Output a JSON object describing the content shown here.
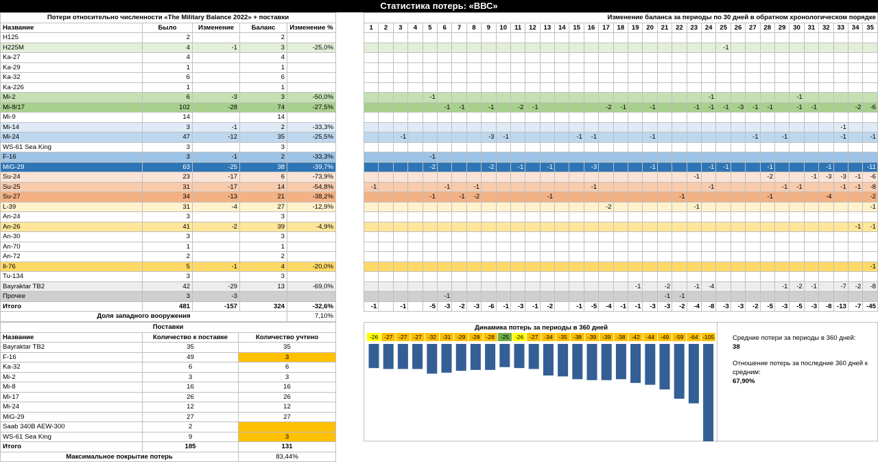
{
  "title": "Статистика потерь: «ВВС»",
  "losses": {
    "header": "Потери относительно численности «The Military Balance 2022» + поставки",
    "columns": [
      "Название",
      "Было",
      "Изменение",
      "Баланс",
      "Изменение %"
    ],
    "rows": [
      {
        "name": "H125",
        "was": "2",
        "change": "",
        "balance": "2",
        "pct": "",
        "color": "#ffffff"
      },
      {
        "name": "H225M",
        "was": "4",
        "change": "-1",
        "balance": "3",
        "pct": "-25,0%",
        "color": "#e2efd9"
      },
      {
        "name": "Ka-27",
        "was": "4",
        "change": "",
        "balance": "4",
        "pct": "",
        "color": "#ffffff"
      },
      {
        "name": "Ka-29",
        "was": "1",
        "change": "",
        "balance": "1",
        "pct": "",
        "color": "#ffffff"
      },
      {
        "name": "Ka-32",
        "was": "6",
        "change": "",
        "balance": "6",
        "pct": "",
        "color": "#ffffff"
      },
      {
        "name": "Ka-226",
        "was": "1",
        "change": "",
        "balance": "1",
        "pct": "",
        "color": "#ffffff"
      },
      {
        "name": "Mi-2",
        "was": "6",
        "change": "-3",
        "balance": "3",
        "pct": "-50,0%",
        "color": "#c5e0b3"
      },
      {
        "name": "Mi-8/17",
        "was": "102",
        "change": "-28",
        "balance": "74",
        "pct": "-27,5%",
        "color": "#a8d08d"
      },
      {
        "name": "Mi-9",
        "was": "14",
        "change": "",
        "balance": "14",
        "pct": "",
        "color": "#ffffff"
      },
      {
        "name": "Mi-14",
        "was": "3",
        "change": "-1",
        "balance": "2",
        "pct": "-33,3%",
        "color": "#deebf6"
      },
      {
        "name": "Mi-24",
        "was": "47",
        "change": "-12",
        "balance": "35",
        "pct": "-25,5%",
        "color": "#bdd7ee"
      },
      {
        "name": "WS-61 Sea King",
        "was": "3",
        "change": "",
        "balance": "3",
        "pct": "",
        "color": "#ffffff"
      },
      {
        "name": "F-16",
        "was": "3",
        "change": "-1",
        "balance": "2",
        "pct": "-33,3%",
        "color": "#9dc3e6"
      },
      {
        "name": "MiG-29",
        "was": "63",
        "change": "-25",
        "balance": "38",
        "pct": "-39,7%",
        "color": "#2e75b6"
      },
      {
        "name": "Su-24",
        "was": "23",
        "change": "-17",
        "balance": "6",
        "pct": "-73,9%",
        "color": "#fbe4d5"
      },
      {
        "name": "Su-25",
        "was": "31",
        "change": "-17",
        "balance": "14",
        "pct": "-54,8%",
        "color": "#f8cbad"
      },
      {
        "name": "Su-27",
        "was": "34",
        "change": "-13",
        "balance": "21",
        "pct": "-38,2%",
        "color": "#f4b183"
      },
      {
        "name": "L-39",
        "was": "31",
        "change": "-4",
        "balance": "27",
        "pct": "-12,9%",
        "color": "#fff2cc"
      },
      {
        "name": "An-24",
        "was": "3",
        "change": "",
        "balance": "3",
        "pct": "",
        "color": "#ffffff"
      },
      {
        "name": "An-26",
        "was": "41",
        "change": "-2",
        "balance": "39",
        "pct": "-4,9%",
        "color": "#ffe699"
      },
      {
        "name": "An-30",
        "was": "3",
        "change": "",
        "balance": "3",
        "pct": "",
        "color": "#ffffff"
      },
      {
        "name": "An-70",
        "was": "1",
        "change": "",
        "balance": "1",
        "pct": "",
        "color": "#ffffff"
      },
      {
        "name": "An-72",
        "was": "2",
        "change": "",
        "balance": "2",
        "pct": "",
        "color": "#ffffff"
      },
      {
        "name": "Il-76",
        "was": "5",
        "change": "-1",
        "balance": "4",
        "pct": "-20,0%",
        "color": "#ffd966"
      },
      {
        "name": "Tu-134",
        "was": "3",
        "change": "",
        "balance": "3",
        "pct": "",
        "color": "#ffffff"
      },
      {
        "name": "Bayraktar TB2",
        "was": "42",
        "change": "-29",
        "balance": "13",
        "pct": "-69,0%",
        "color": "#ededed"
      },
      {
        "name": "Прочее",
        "was": "3",
        "change": "-3",
        "balance": "",
        "pct": "",
        "color": "#d0cece"
      }
    ],
    "total": {
      "name": "Итого",
      "was": "481",
      "change": "-157",
      "balance": "324",
      "pct": "-32,6%"
    },
    "western_label": "Доля западного вооружения",
    "western_value": "7,10%"
  },
  "periods": {
    "header": "Изменение баланса за периоды по 30 дней в обратном хронологическом порядке",
    "numbers": [
      "1",
      "2",
      "3",
      "4",
      "5",
      "6",
      "7",
      "8",
      "9",
      "10",
      "11",
      "12",
      "13",
      "14",
      "15",
      "16",
      "17",
      "18",
      "19",
      "20",
      "21",
      "22",
      "23",
      "24",
      "25",
      "26",
      "27",
      "28",
      "29",
      "30",
      "31",
      "32",
      "33",
      "34",
      "35"
    ],
    "rows": [
      {},
      {
        "25": "-1"
      },
      {},
      {},
      {},
      {},
      {
        "5": "-1",
        "24": "-1",
        "30": "-1"
      },
      {
        "6": "-1",
        "7": "-1",
        "9": "-1",
        "11": "-2",
        "12": "-1",
        "17": "-2",
        "18": "-1",
        "20": "-1",
        "23": "-1",
        "24": "-1",
        "25": "-1",
        "26": "-3",
        "27": "-1",
        "28": "-1",
        "30": "-1",
        "31": "-1",
        "34": "-2",
        "35": "-6"
      },
      {},
      {
        "33": "-1"
      },
      {
        "3": "-1",
        "9": "-3",
        "10": "-1",
        "15": "-1",
        "16": "-1",
        "20": "-1",
        "27": "-1",
        "29": "-1",
        "33": "-1",
        "35": "-1"
      },
      {},
      {
        "5": "-1"
      },
      {
        "5": "-2",
        "9": "-2",
        "11": "-1",
        "13": "-1",
        "16": "-3",
        "20": "-1",
        "24": "-1",
        "25": "-1",
        "28": "-1",
        "32": "-1",
        "35": "-11"
      },
      {
        "23": "-1",
        "28": "-2",
        "31": "-1",
        "32": "-3",
        "33": "-3",
        "34": "-1",
        "35": "-6"
      },
      {
        "1": "-1",
        "6": "-1",
        "8": "-1",
        "16": "-1",
        "24": "-1",
        "29": "-1",
        "30": "-1",
        "33": "-1",
        "34": "-1",
        "35": "-8"
      },
      {
        "5": "-1",
        "7": "-1",
        "8": "-2",
        "13": "-1",
        "22": "-1",
        "28": "-1",
        "32": "-4",
        "35": "-2"
      },
      {
        "17": "-2",
        "23": "-1",
        "35": "-1"
      },
      {},
      {
        "34": "-1",
        "35": "-1"
      },
      {},
      {},
      {},
      {
        "35": "-1"
      },
      {},
      {
        "19": "-1",
        "21": "-2",
        "23": "-1",
        "24": "-4",
        "29": "-1",
        "30": "-2",
        "31": "-1",
        "33": "-7",
        "34": "-2",
        "35": "-8"
      },
      {
        "6": "-1",
        "21": "-1",
        "22": "-1"
      }
    ],
    "totals": [
      "-1",
      "",
      "-1",
      "",
      "-5",
      "-3",
      "-2",
      "-3",
      "-6",
      "-1",
      "-3",
      "-1",
      "-2",
      "",
      "-1",
      "-5",
      "-4",
      "-1",
      "-1",
      "-3",
      "-3",
      "-2",
      "-4",
      "-8",
      "-3",
      "-3",
      "-2",
      "-5",
      "-3",
      "-5",
      "-3",
      "-8",
      "-13",
      "-7",
      "-45"
    ]
  },
  "supplies": {
    "header": "Поставки",
    "columns": [
      "Название",
      "Количество к поставке",
      "Количество учтено"
    ],
    "rows": [
      {
        "name": "Bayraktar TB2",
        "planned": "35",
        "counted": "35",
        "hl": false
      },
      {
        "name": "F-16",
        "planned": "49",
        "counted": "3",
        "hl": true
      },
      {
        "name": "Ka-32",
        "planned": "6",
        "counted": "6",
        "hl": false
      },
      {
        "name": "Mi-2",
        "planned": "3",
        "counted": "3",
        "hl": false
      },
      {
        "name": "Mi-8",
        "planned": "16",
        "counted": "16",
        "hl": false
      },
      {
        "name": "Mi-17",
        "planned": "26",
        "counted": "26",
        "hl": false
      },
      {
        "name": "Mi-24",
        "planned": "12",
        "counted": "12",
        "hl": false
      },
      {
        "name": "MiG-29",
        "planned": "27",
        "counted": "27",
        "hl": false
      },
      {
        "name": "Saab 340B AEW-300",
        "planned": "2",
        "counted": "",
        "hl": true
      },
      {
        "name": "WS-61 Sea King",
        "planned": "9",
        "counted": "3",
        "hl": true
      }
    ],
    "total": {
      "name": "Итого",
      "planned": "185",
      "counted": "131"
    },
    "coverage_label": "Максимальное покрытие потерь",
    "coverage_value": "83,44%"
  },
  "chart_data": {
    "type": "bar",
    "title": "Динамика потерь за периоды в 360 дней",
    "values": [
      -26,
      -27,
      -27,
      -27,
      -32,
      -31,
      -29,
      -28,
      -28,
      -25,
      -26,
      -27,
      -34,
      -35,
      -38,
      -39,
      -39,
      -38,
      -42,
      -44,
      -49,
      -59,
      -64,
      -105
    ],
    "label_colors": [
      "#ffff00",
      "#ffc000",
      "#ffc000",
      "#ffc000",
      "#ffc000",
      "#ffc000",
      "#ffc000",
      "#ffc000",
      "#ffc000",
      "#70ad47",
      "#ffff00",
      "#ffc000",
      "#ffc000",
      "#ffc000",
      "#ffc000",
      "#ffc000",
      "#ffc000",
      "#ffc000",
      "#ffc000",
      "#ffc000",
      "#ffc000",
      "#ffc000",
      "#ffc000",
      "#ffc000"
    ],
    "bar_color": "#335f95"
  },
  "stats": {
    "avg_label": "Средние потери за периоды в 360 дней:",
    "avg_value": "38",
    "ratio_label": "Отношение потерь за последние 360 дней к средним:",
    "ratio_value": "67,90%"
  }
}
